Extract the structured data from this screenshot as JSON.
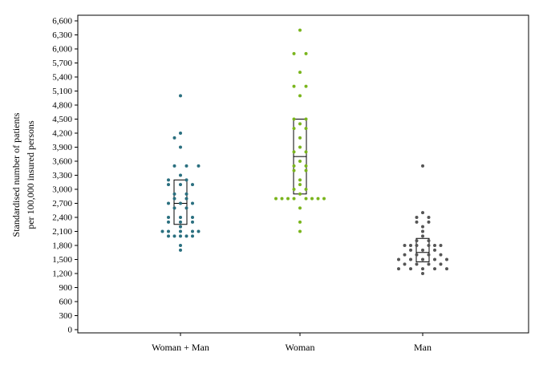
{
  "chart_data": {
    "type": "scatter",
    "subtype": "dot-strip-with-box",
    "ylabel_lines": [
      "Standardised number of patients",
      "per 100,000 insured persons"
    ],
    "ylim": [
      0,
      6700
    ],
    "yticks": [
      0,
      300,
      600,
      900,
      1200,
      1500,
      1800,
      2100,
      2400,
      2700,
      3000,
      3300,
      3600,
      3900,
      4200,
      4500,
      4800,
      5100,
      5400,
      5700,
      6000,
      6300,
      6600
    ],
    "ytick_labels": [
      "0",
      "300",
      "600",
      "900",
      "1,200",
      "1,500",
      "1,800",
      "2,100",
      "2,400",
      "2,700",
      "3,000",
      "3,300",
      "3,600",
      "3,900",
      "4,200",
      "4,500",
      "4,800",
      "5,100",
      "5,400",
      "5,700",
      "6,000",
      "6,300",
      "6,600"
    ],
    "categories": [
      "Woman + Man",
      "Woman",
      "Man"
    ],
    "grid": false,
    "legend": "none",
    "series": [
      {
        "category": "Woman + Man",
        "color": "#2a6f7f",
        "box": {
          "q1": 2250,
          "median": 2700,
          "q3": 3200
        },
        "points": [
          [
            0,
            5000
          ],
          [
            0,
            4200
          ],
          [
            -1,
            4100
          ],
          [
            0,
            3900
          ],
          [
            -1,
            3500
          ],
          [
            1,
            3500
          ],
          [
            3,
            3500
          ],
          [
            0,
            3300
          ],
          [
            -2,
            3200
          ],
          [
            1,
            3200
          ],
          [
            -2,
            3100
          ],
          [
            0,
            3100
          ],
          [
            2,
            3100
          ],
          [
            -1,
            2900
          ],
          [
            1,
            2900
          ],
          [
            -1,
            2800
          ],
          [
            1,
            2800
          ],
          [
            -2,
            2700
          ],
          [
            0,
            2700
          ],
          [
            2,
            2700
          ],
          [
            -1,
            2600
          ],
          [
            1,
            2600
          ],
          [
            -2,
            2400
          ],
          [
            0,
            2400
          ],
          [
            2,
            2400
          ],
          [
            -2,
            2300
          ],
          [
            0,
            2300
          ],
          [
            2,
            2300
          ],
          [
            0,
            2200
          ],
          [
            -3,
            2100
          ],
          [
            -2,
            2100
          ],
          [
            0,
            2100
          ],
          [
            2,
            2100
          ],
          [
            3,
            2100
          ],
          [
            -2,
            2000
          ],
          [
            -1,
            2000
          ],
          [
            0,
            2000
          ],
          [
            1,
            2000
          ],
          [
            2,
            2000
          ],
          [
            0,
            1800
          ],
          [
            0,
            1700
          ]
        ]
      },
      {
        "category": "Woman",
        "color": "#7ab51d",
        "box": {
          "q1": 2900,
          "median": 3700,
          "q3": 4500
        },
        "points": [
          [
            0,
            6400
          ],
          [
            -1,
            5900
          ],
          [
            1,
            5900
          ],
          [
            0,
            5500
          ],
          [
            -1,
            5200
          ],
          [
            1,
            5200
          ],
          [
            0,
            5000
          ],
          [
            -1,
            4500
          ],
          [
            1,
            4500
          ],
          [
            0,
            4400
          ],
          [
            -1,
            4300
          ],
          [
            1,
            4300
          ],
          [
            0,
            4100
          ],
          [
            0,
            3900
          ],
          [
            -1,
            3800
          ],
          [
            1,
            3800
          ],
          [
            0,
            3600
          ],
          [
            -1,
            3500
          ],
          [
            1,
            3500
          ],
          [
            -1,
            3400
          ],
          [
            1,
            3400
          ],
          [
            0,
            3200
          ],
          [
            0,
            3100
          ],
          [
            -1,
            3000
          ],
          [
            1,
            3000
          ],
          [
            0,
            2900
          ],
          [
            -4,
            2800
          ],
          [
            -3,
            2800
          ],
          [
            -2,
            2800
          ],
          [
            -1,
            2800
          ],
          [
            1,
            2800
          ],
          [
            2,
            2800
          ],
          [
            3,
            2800
          ],
          [
            4,
            2800
          ],
          [
            0,
            2600
          ],
          [
            0,
            2300
          ],
          [
            0,
            2100
          ]
        ]
      },
      {
        "category": "Man",
        "color": "#555555",
        "box": {
          "q1": 1450,
          "median": 1650,
          "q3": 1950
        },
        "points": [
          [
            0,
            3500
          ],
          [
            0,
            2500
          ],
          [
            -1,
            2400
          ],
          [
            1,
            2400
          ],
          [
            -1,
            2300
          ],
          [
            1,
            2300
          ],
          [
            0,
            2200
          ],
          [
            0,
            2100
          ],
          [
            0,
            2000
          ],
          [
            -1,
            1900
          ],
          [
            1,
            1900
          ],
          [
            -3,
            1800
          ],
          [
            -2,
            1800
          ],
          [
            -1,
            1800
          ],
          [
            1,
            1800
          ],
          [
            2,
            1800
          ],
          [
            3,
            1800
          ],
          [
            -2,
            1700
          ],
          [
            0,
            1700
          ],
          [
            2,
            1700
          ],
          [
            -3,
            1600
          ],
          [
            -1,
            1600
          ],
          [
            1,
            1600
          ],
          [
            3,
            1600
          ],
          [
            -4,
            1500
          ],
          [
            -2,
            1500
          ],
          [
            0,
            1500
          ],
          [
            2,
            1500
          ],
          [
            4,
            1500
          ],
          [
            -3,
            1400
          ],
          [
            -1,
            1400
          ],
          [
            1,
            1400
          ],
          [
            3,
            1400
          ],
          [
            -4,
            1300
          ],
          [
            -2,
            1300
          ],
          [
            0,
            1300
          ],
          [
            2,
            1300
          ],
          [
            4,
            1300
          ],
          [
            0,
            1200
          ]
        ]
      }
    ]
  }
}
